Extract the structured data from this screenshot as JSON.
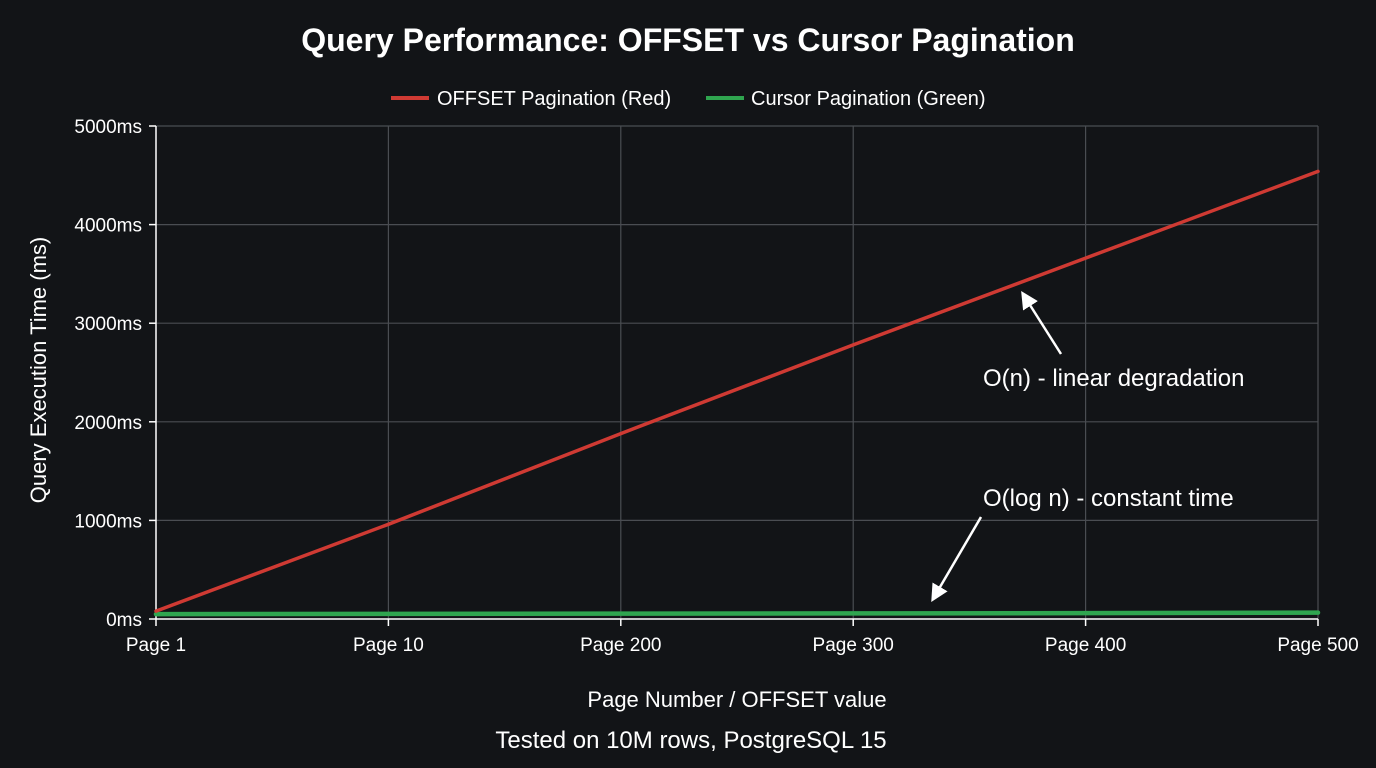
{
  "chart_data": {
    "type": "line",
    "title": "Query Performance: OFFSET vs Cursor Pagination",
    "xlabel": "Page Number / OFFSET value",
    "ylabel": "Query Execution Time (ms)",
    "categories": [
      "Page 1",
      "Page 10",
      "Page 200",
      "Page 300",
      "Page 400",
      "Page 500"
    ],
    "y_ticks": [
      "0ms",
      "1000ms",
      "2000ms",
      "3000ms",
      "4000ms",
      "5000ms"
    ],
    "ylim": [
      0,
      5000
    ],
    "grid": true,
    "legend_position": "top-center",
    "series": [
      {
        "name": "OFFSET Pagination (Red)",
        "color": "#cf3a33",
        "values": [
          80,
          960,
          1880,
          2780,
          3660,
          4540
        ]
      },
      {
        "name": "Cursor Pagination (Green)",
        "color": "#2fa54f",
        "values": [
          50,
          52,
          55,
          57,
          60,
          65
        ]
      }
    ],
    "annotations": [
      {
        "text": "O(n) - linear degradation",
        "target_series": 0
      },
      {
        "text": "O(log n) - constant time",
        "target_series": 1
      }
    ],
    "footnote": "Tested on 10M rows, PostgreSQL 15"
  }
}
